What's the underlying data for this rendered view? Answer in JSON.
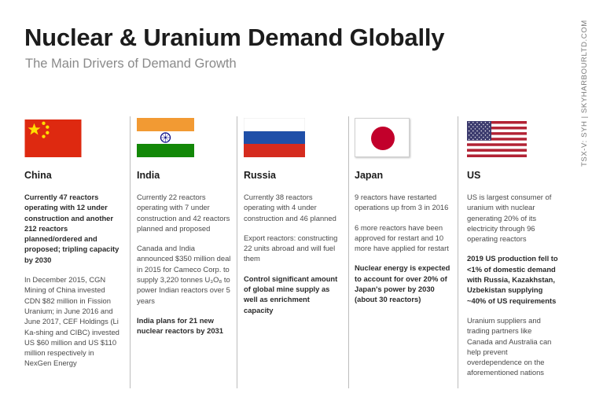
{
  "header": {
    "title": "Nuclear & Uranium Demand Globally",
    "subtitle": "The Main Drivers of Demand Growth",
    "side_text": "TSX-V: SYH  |  SKYHARBOURLTD.COM"
  },
  "colors": {
    "title": "#1c1c1c",
    "subtitle": "#8a8a8a",
    "body": "#4a4a4a",
    "divider": "#bdbdbd",
    "china_red": "#de2910",
    "china_star": "#ffde00",
    "india_saffron": "#f29a33",
    "india_green": "#138808",
    "india_wheel": "#000080",
    "russia_blue": "#1f4fa8",
    "russia_red": "#d52b1e",
    "japan_red": "#c2002b",
    "us_red": "#b22234",
    "us_blue": "#3c3b6e"
  },
  "countries": [
    {
      "name": "China",
      "flag_icon": "china-flag-icon",
      "paragraphs": [
        {
          "bold": true,
          "lines": [
            "Currently 47 reactors",
            "operating with 12 under",
            "construction and another",
            "212 reactors",
            "planned/ordered and",
            "proposed; tripling capacity",
            "by 2030"
          ]
        },
        {
          "bold": false,
          "lines": [
            "In December 2015, CGN",
            "Mining of China invested",
            "CDN $82 million in Fission",
            "Uranium; in June 2016 and",
            "June 2017, CEF Holdings (Li",
            "Ka-shing and CIBC) invested",
            "US $60 million and US $110",
            "million respectively in",
            "NexGen Energy"
          ]
        }
      ]
    },
    {
      "name": "India",
      "flag_icon": "india-flag-icon",
      "paragraphs": [
        {
          "bold": false,
          "lines": [
            "Currently 22 reactors",
            "operating with 7 under",
            "construction and 42 reactors",
            "planned and proposed"
          ]
        },
        {
          "bold": false,
          "lines": [
            "Canada and India",
            "announced $350 million deal",
            "in 2015 for Cameco Corp. to",
            "supply 3,220 tonnes U₃O₈ to",
            "power Indian reactors over 5",
            "years"
          ]
        },
        {
          "bold": true,
          "lines": [
            "India plans for 21 new",
            "nuclear reactors by 2031"
          ]
        }
      ]
    },
    {
      "name": "Russia",
      "flag_icon": "russia-flag-icon",
      "paragraphs": [
        {
          "bold": false,
          "lines": [
            "Currently 38 reactors",
            "operating with 4 under",
            "construction and 46 planned"
          ]
        },
        {
          "bold": false,
          "lines": [
            "Export reactors: constructing",
            "22 units abroad and will fuel",
            "them"
          ]
        },
        {
          "bold": true,
          "lines": [
            "Control significant amount",
            "of global mine supply as",
            "well as enrichment",
            "capacity"
          ]
        }
      ]
    },
    {
      "name": "Japan",
      "flag_icon": "japan-flag-icon",
      "paragraphs": [
        {
          "bold": false,
          "lines": [
            "9 reactors have restarted",
            "operations up from 3 in 2016"
          ]
        },
        {
          "bold": false,
          "lines": [
            "6 more reactors have been",
            "approved for restart and 10",
            "more have applied for restart"
          ]
        },
        {
          "bold": true,
          "lines": [
            "Nuclear energy is expected",
            "to account for over 20% of",
            "Japan's power by 2030",
            "(about 30 reactors)"
          ]
        }
      ]
    },
    {
      "name": "US",
      "flag_icon": "us-flag-icon",
      "paragraphs": [
        {
          "bold": false,
          "lines": [
            "US is largest consumer of",
            "uranium with nuclear",
            "generating 20% of  its",
            "electricity through 96",
            "operating reactors"
          ]
        },
        {
          "bold": true,
          "lines": [
            "2019 US production fell to",
            "<1% of domestic demand",
            "with Russia, Kazakhstan,",
            "Uzbekistan supplying",
            "~40% of US requirements"
          ]
        },
        {
          "bold": false,
          "lines": [
            "Uranium suppliers and",
            "trading partners like",
            "Canada and Australia can",
            "help prevent",
            "overdependence on the",
            "aforementioned nations"
          ]
        }
      ]
    }
  ]
}
